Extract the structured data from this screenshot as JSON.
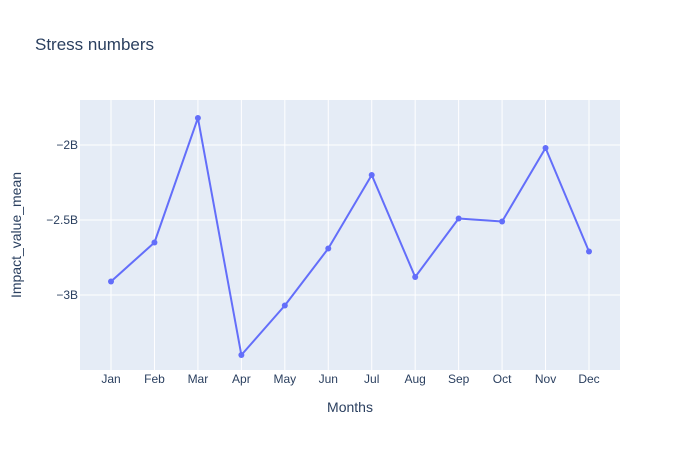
{
  "chart_data": {
    "type": "line",
    "title": "Stress numbers",
    "xlabel": "Months",
    "ylabel": "Impact_value_mean",
    "categories": [
      "Jan",
      "Feb",
      "Mar",
      "Apr",
      "May",
      "Jun",
      "Jul",
      "Aug",
      "Sep",
      "Oct",
      "Nov",
      "Dec"
    ],
    "series": [
      {
        "values": [
          -2.91,
          -2.65,
          -1.82,
          -3.4,
          -3.07,
          -2.69,
          -2.2,
          -2.88,
          -2.49,
          -2.51,
          -2.02,
          -2.71
        ]
      }
    ],
    "ylim": [
      -3.5,
      -1.7
    ],
    "yticks": [
      -3,
      -2.5,
      -2
    ],
    "ytick_labels": [
      "−3B",
      "−2.5B",
      "−2B"
    ],
    "grid": true,
    "colors": {
      "line": "#636efa",
      "plot_bg": "#e5ecf6",
      "grid": "#ffffff",
      "text": "#2a3f5f"
    }
  }
}
